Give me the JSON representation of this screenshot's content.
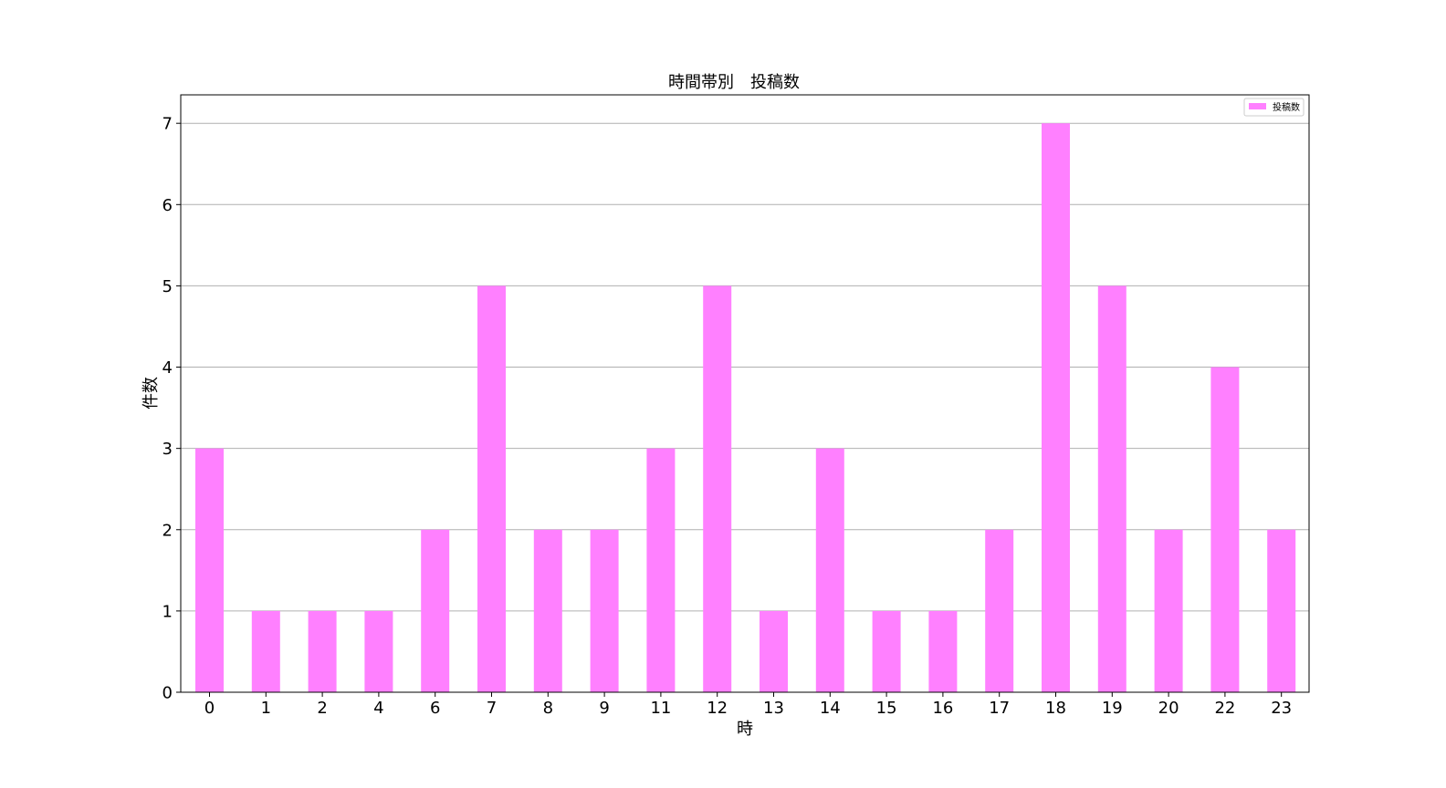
{
  "chart_data": {
    "type": "bar",
    "title": "時間帯別　投稿数",
    "xlabel": "時",
    "ylabel": "件数",
    "categories": [
      "0",
      "1",
      "2",
      "4",
      "6",
      "7",
      "8",
      "9",
      "11",
      "12",
      "13",
      "14",
      "15",
      "16",
      "17",
      "18",
      "19",
      "20",
      "22",
      "23"
    ],
    "series": [
      {
        "name": "投稿数",
        "values": [
          3,
          1,
          1,
          1,
          2,
          5,
          2,
          2,
          3,
          5,
          1,
          3,
          1,
          1,
          2,
          7,
          5,
          2,
          4,
          2
        ]
      }
    ],
    "ylim": [
      0,
      7.35
    ],
    "yticks": [
      0,
      1,
      2,
      3,
      4,
      5,
      6,
      7
    ],
    "grid": "y",
    "legend_position": "top-right",
    "colors": {
      "bar": "#ff80ff",
      "grid": "#b0b0b0",
      "axis": "#000000"
    }
  }
}
